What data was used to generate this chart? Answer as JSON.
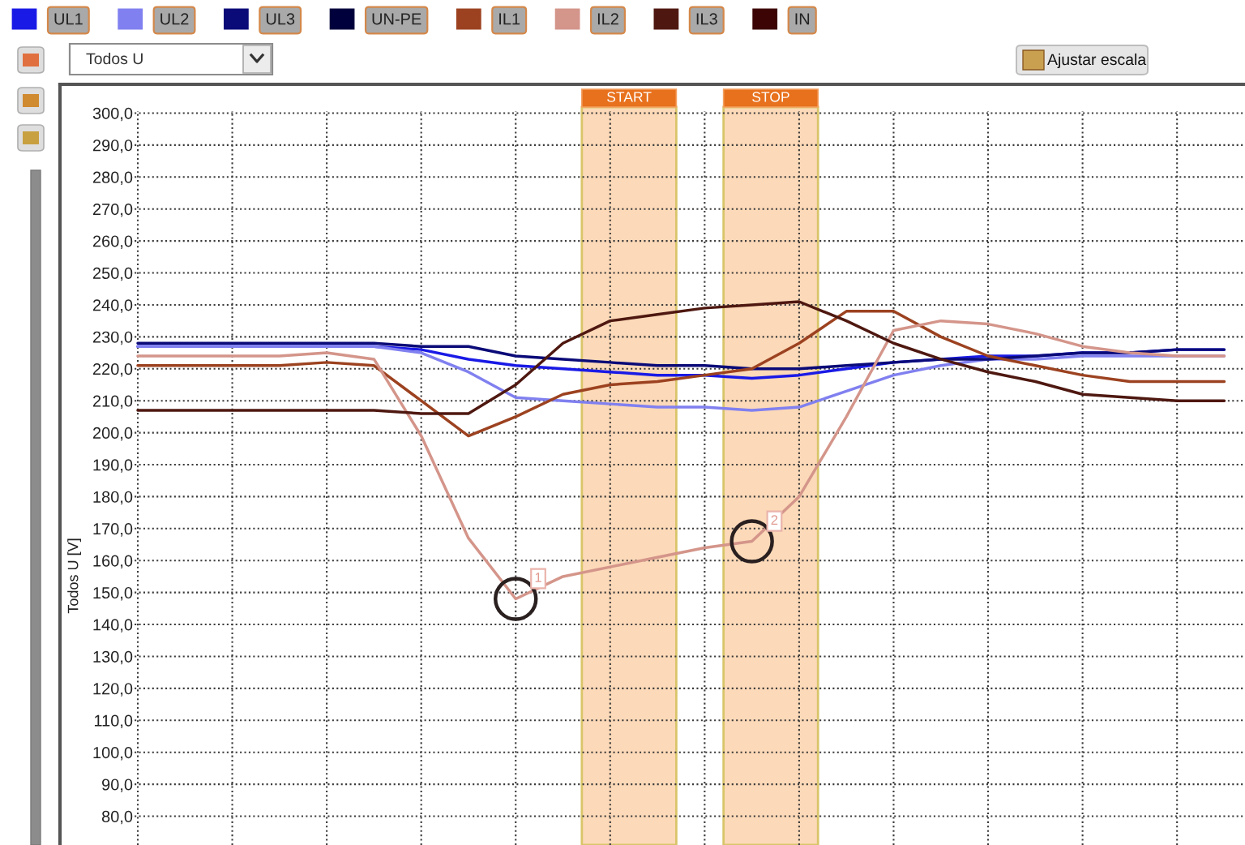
{
  "chart_data": {
    "type": "line",
    "ylabel": "Todos U [V]",
    "categories": [
      null,
      null,
      null,
      null,
      null,
      null,
      null,
      null,
      null,
      null,
      null,
      null,
      null,
      null,
      null,
      null,
      null,
      null,
      null,
      null,
      null,
      null,
      null,
      null
    ],
    "series": [
      {
        "name": "UL1",
        "color": "#1a1ae6",
        "values": [
          227,
          227,
          227,
          227,
          227,
          227,
          226,
          223,
          221,
          220,
          219,
          218,
          218,
          217,
          218,
          220,
          222,
          223,
          224,
          224,
          225,
          225,
          226,
          226
        ]
      },
      {
        "name": "UL2",
        "color": "#8080f0",
        "values": [
          227,
          227,
          227,
          227,
          227,
          227,
          225,
          219,
          211,
          210,
          209,
          208,
          208,
          207,
          208,
          213,
          218,
          221,
          223,
          223,
          224,
          224,
          224,
          224
        ]
      },
      {
        "name": "UL3",
        "color": "#0a0a78",
        "values": [
          228,
          228,
          228,
          228,
          228,
          228,
          227,
          227,
          224,
          223,
          222,
          221,
          221,
          220,
          220,
          221,
          222,
          223,
          223,
          224,
          225,
          225,
          226,
          226
        ]
      },
      {
        "name": "UN-PE",
        "color": "#00003c",
        "values": [
          null,
          null,
          null,
          null,
          null,
          null,
          null,
          null,
          null,
          null,
          null,
          null,
          null,
          null,
          null,
          null,
          null,
          null,
          null,
          null,
          null,
          null,
          null,
          null
        ]
      },
      {
        "name": "IL1",
        "color": "#9c4220",
        "values": [
          221,
          221,
          221,
          221,
          222,
          221,
          210,
          199,
          205,
          212,
          215,
          216,
          218,
          220,
          228,
          238,
          238,
          230,
          224,
          221,
          218,
          216,
          216,
          216
        ]
      },
      {
        "name": "IL2",
        "color": "#d4958a",
        "values": [
          224,
          224,
          224,
          224,
          225,
          223,
          199,
          167,
          148,
          155,
          158,
          161,
          164,
          166,
          180,
          205,
          232,
          235,
          234,
          231,
          227,
          225,
          224,
          224
        ]
      },
      {
        "name": "IL3",
        "color": "#4e1810",
        "values": [
          207,
          207,
          207,
          207,
          207,
          207,
          206,
          206,
          215,
          228,
          235,
          237,
          239,
          240,
          241,
          235,
          228,
          223,
          219,
          216,
          212,
          211,
          210,
          210
        ]
      },
      {
        "name": "IN",
        "color": "#3c0404",
        "values": [
          null,
          null,
          null,
          null,
          null,
          null,
          null,
          null,
          null,
          null,
          null,
          null,
          null,
          null,
          null,
          null,
          null,
          null,
          null,
          null,
          null,
          null,
          null,
          null
        ]
      }
    ],
    "ylim": [
      71,
      309
    ],
    "yticks": [
      {
        "value": 80,
        "label": "80,0"
      },
      {
        "value": 90,
        "label": "90,0"
      },
      {
        "value": 100,
        "label": "100,0"
      },
      {
        "value": 110,
        "label": "110,0"
      },
      {
        "value": 120,
        "label": "120,0"
      },
      {
        "value": 130,
        "label": "130,0"
      },
      {
        "value": 140,
        "label": "140,0"
      },
      {
        "value": 150,
        "label": "150,0"
      },
      {
        "value": 160,
        "label": "160,0"
      },
      {
        "value": 170,
        "label": "170,0"
      },
      {
        "value": 180,
        "label": "180,0"
      },
      {
        "value": 190,
        "label": "190,0"
      },
      {
        "value": 200,
        "label": "200,0"
      },
      {
        "value": 210,
        "label": "210,0"
      },
      {
        "value": 220,
        "label": "220,0"
      },
      {
        "value": 230,
        "label": "230,0"
      },
      {
        "value": 240,
        "label": "240,0"
      },
      {
        "value": 250,
        "label": "250,0"
      },
      {
        "value": 260,
        "label": "260,0"
      },
      {
        "value": 270,
        "label": "270,0"
      },
      {
        "value": 280,
        "label": "280,0"
      },
      {
        "value": 290,
        "label": "290,0"
      },
      {
        "value": 300,
        "label": "300,0"
      }
    ],
    "grid": true,
    "legend": "top",
    "annotations": [
      "Todos U",
      "Ajustar escala",
      "START",
      "STOP",
      {
        "text": "1",
        "y": 148
      },
      {
        "text": "2",
        "y": 166
      }
    ]
  }
}
